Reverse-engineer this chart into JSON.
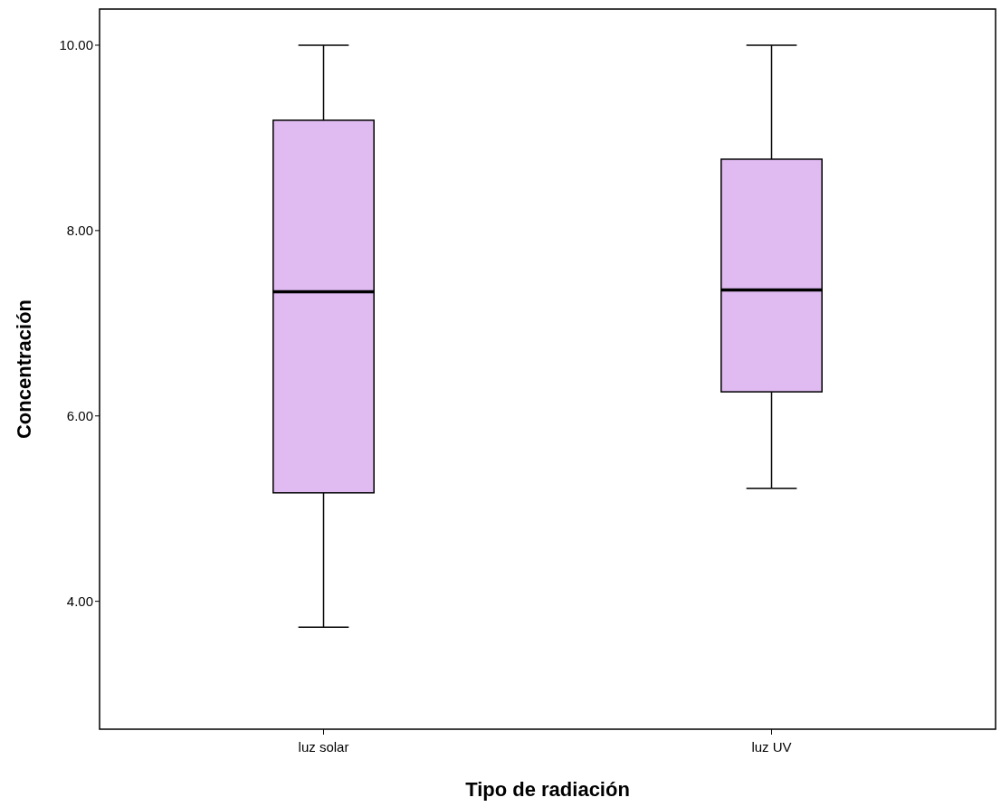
{
  "chart_data": {
    "type": "box",
    "xlabel": "Tipo de radiación",
    "ylabel": "Concentración",
    "categories": [
      "luz solar",
      "luz UV"
    ],
    "color": "#dfbbf2",
    "boxes": [
      {
        "low": 3.72,
        "q1": 5.17,
        "median": 7.34,
        "q3": 9.19,
        "high": 10
      },
      {
        "low": 5.22,
        "q1": 6.26,
        "median": 7.36,
        "q3": 8.77,
        "high": 10
      }
    ],
    "ylim": [
      2.62,
      10.39
    ],
    "yticks": [
      {
        "value": 4,
        "label": "4.00"
      },
      {
        "value": 6,
        "label": "6.00"
      },
      {
        "value": 8,
        "label": "8.00"
      },
      {
        "value": 10,
        "label": "10.00"
      }
    ],
    "grid": false
  }
}
